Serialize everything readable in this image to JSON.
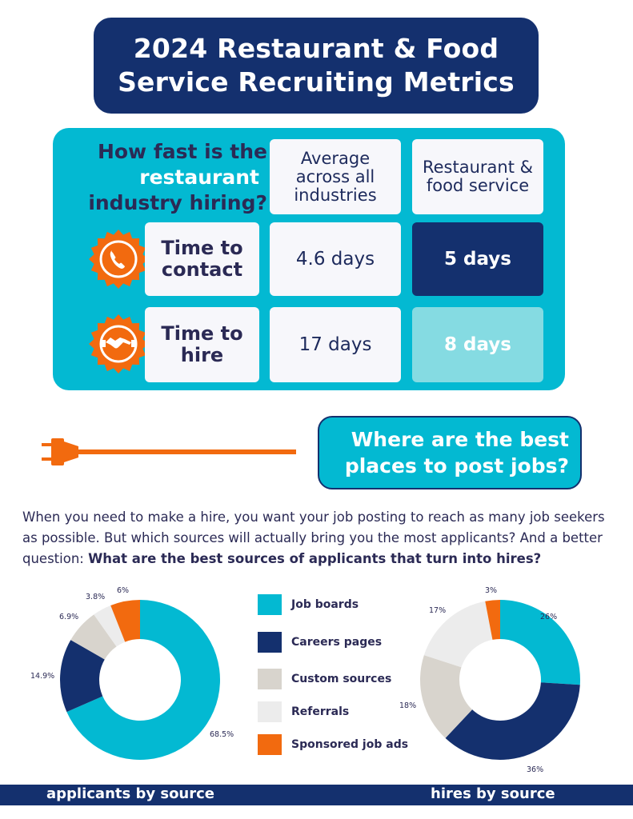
{
  "title": {
    "line1": "2024 Restaurant & Food",
    "line2": "Service Recruiting Metrics"
  },
  "speed": {
    "question": [
      "How fast is the",
      "restaurant",
      "industry hiring?"
    ],
    "col_headers": [
      "Average across all industries",
      "Restaurant & food service"
    ],
    "rows": [
      {
        "label": "Time to contact",
        "avg": "4.6 days",
        "restaurant": "5 days",
        "icon": "phone-icon"
      },
      {
        "label": "Time to hire",
        "avg": "17 days",
        "restaurant": "8 days",
        "icon": "handshake-icon"
      }
    ]
  },
  "section2": {
    "line1": "Where are the best",
    "line2": "places to post jobs?"
  },
  "intro": {
    "text": "When you need to make a hire, you want your job posting to reach as many job seekers as possible. But which sources will actually bring you the most applicants? And a better question: ",
    "bold": "What are the best sources of applicants that turn into hires?"
  },
  "colors": {
    "navy": "#14306e",
    "teal": "#03b9d2",
    "light_teal": "#85dbe2",
    "orange": "#f26a0f",
    "Job boards": "#03b9d2",
    "Careers pages": "#14306e",
    "Custom sources": "#d8d4cd",
    "Referrals": "#ececec",
    "Sponsored job ads": "#f26a0f"
  },
  "legend": [
    "Job boards",
    "Careers pages",
    "Custom sources",
    "Referrals",
    "Sponsored job ads"
  ],
  "footer": {
    "left": "applicants by source",
    "right": "hires by source"
  },
  "chart_data": [
    {
      "type": "pie",
      "title": "applicants by source",
      "categories": [
        "Job boards",
        "Careers pages",
        "Custom sources",
        "Referrals",
        "Sponsored job ads"
      ],
      "values": [
        68.5,
        14.9,
        6.9,
        3.8,
        6
      ],
      "labels": [
        "68.5%",
        "14.9%",
        "6.9%",
        "3.8%",
        "6%"
      ]
    },
    {
      "type": "pie",
      "title": "hires by source",
      "categories": [
        "Job boards",
        "Careers pages",
        "Custom sources",
        "Referrals",
        "Sponsored job ads"
      ],
      "values": [
        26,
        36,
        18,
        17,
        3
      ],
      "labels": [
        "26%",
        "36%",
        "18%",
        "17%",
        "3%"
      ]
    }
  ]
}
